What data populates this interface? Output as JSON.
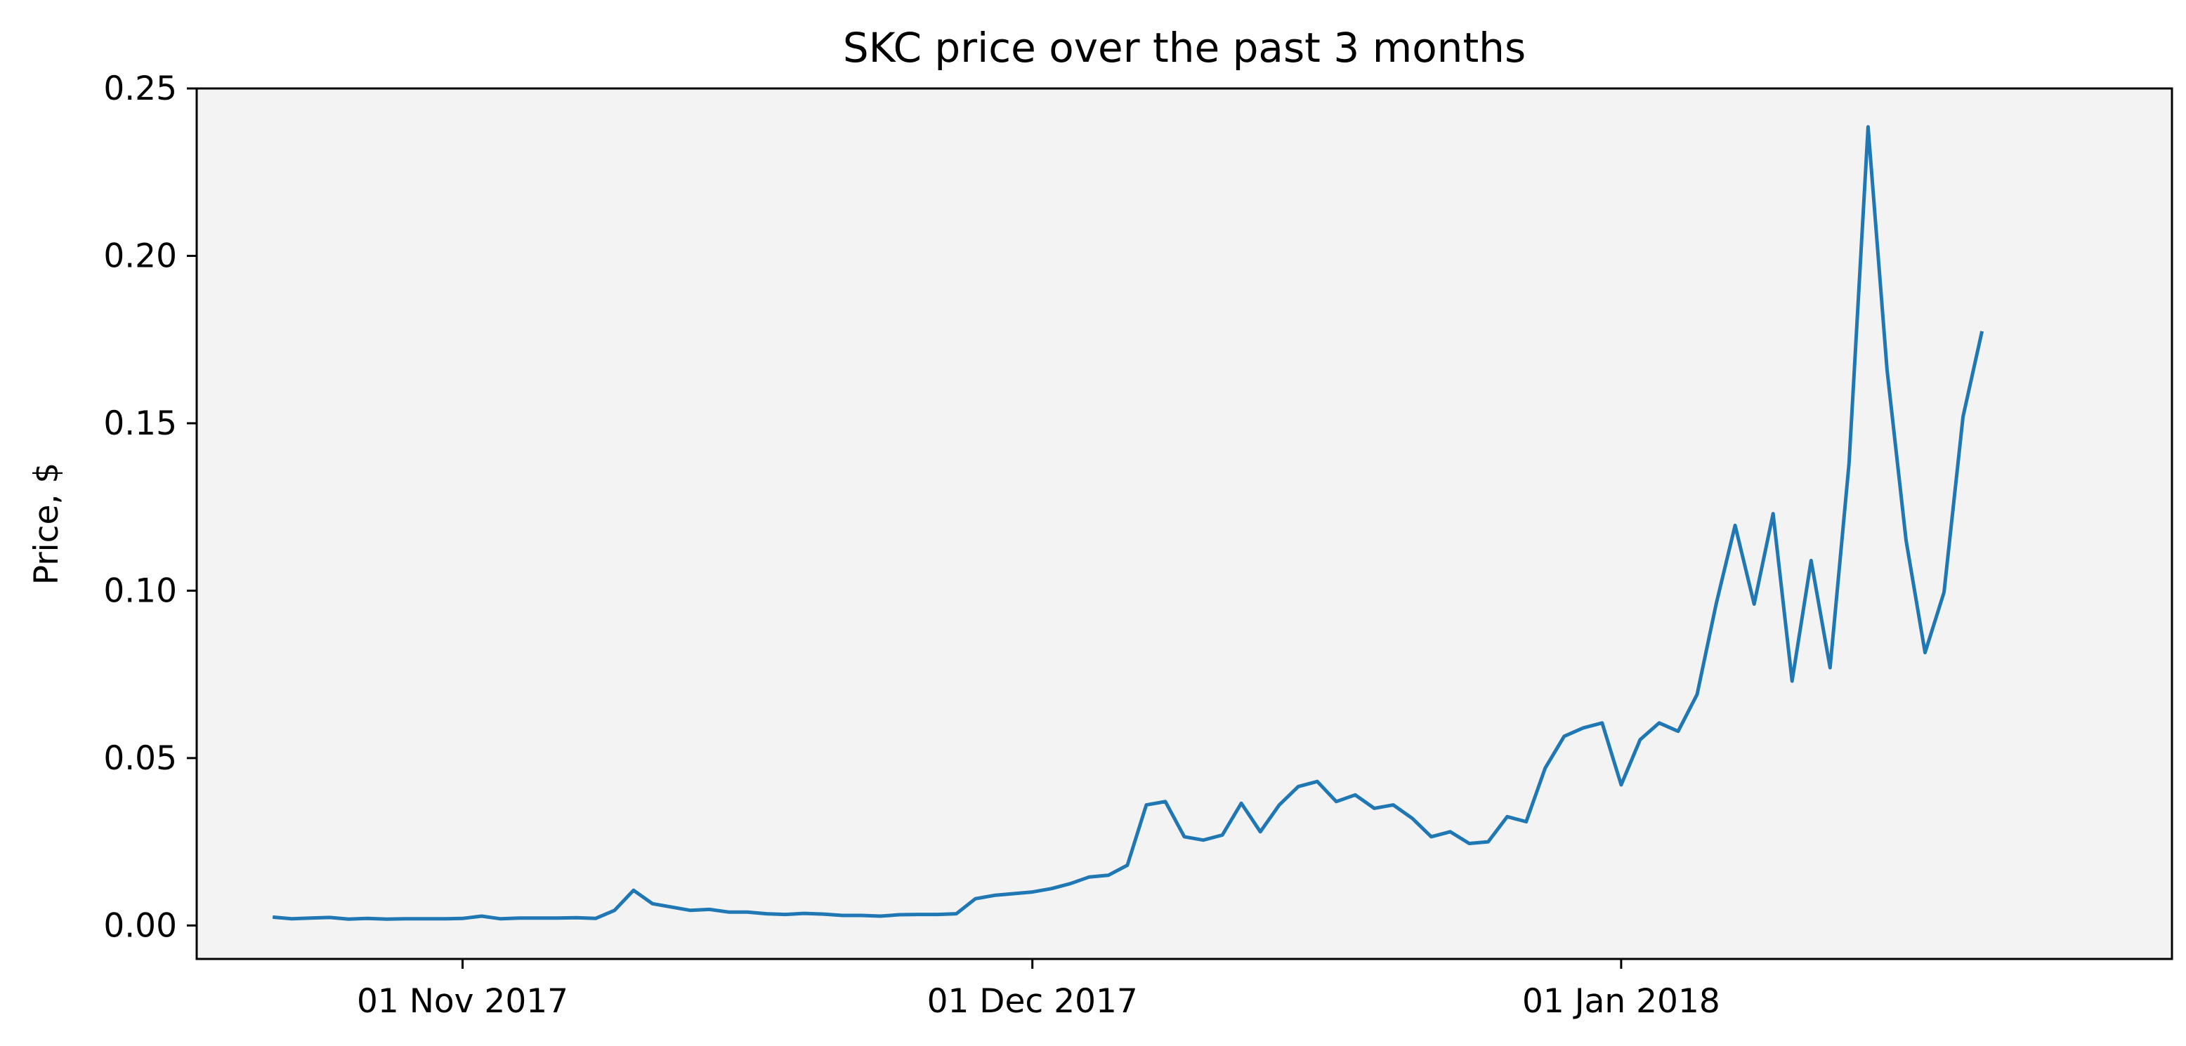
{
  "chart_data": {
    "type": "line",
    "title": "SKC price over the past 3 months",
    "xlabel": "",
    "ylabel": "Price, $",
    "ylim": [
      -0.01,
      0.25
    ],
    "xlim": [
      "2017-10-18",
      "2018-01-30"
    ],
    "grid": false,
    "legend": "none",
    "x_ticks": [
      {
        "date": "2017-11-01",
        "label": "01 Nov 2017"
      },
      {
        "date": "2017-12-01",
        "label": "01 Dec 2017"
      },
      {
        "date": "2018-01-01",
        "label": "01 Jan 2018"
      }
    ],
    "y_ticks": [
      {
        "value": 0.0,
        "label": "0.00"
      },
      {
        "value": 0.05,
        "label": "0.05"
      },
      {
        "value": 0.1,
        "label": "0.10"
      },
      {
        "value": 0.15,
        "label": "0.15"
      },
      {
        "value": 0.2,
        "label": "0.20"
      },
      {
        "value": 0.25,
        "label": "0.25"
      }
    ],
    "series": [
      {
        "color": "#1f77b4",
        "points": [
          [
            "2017-10-22",
            0.0025
          ],
          [
            "2017-10-23",
            0.002
          ],
          [
            "2017-10-24",
            0.0022
          ],
          [
            "2017-10-25",
            0.0024
          ],
          [
            "2017-10-26",
            0.0019
          ],
          [
            "2017-10-27",
            0.0021
          ],
          [
            "2017-10-28",
            0.0019
          ],
          [
            "2017-10-29",
            0.002
          ],
          [
            "2017-10-30",
            0.002
          ],
          [
            "2017-10-31",
            0.002
          ],
          [
            "2017-11-01",
            0.0021
          ],
          [
            "2017-11-02",
            0.0028
          ],
          [
            "2017-11-03",
            0.002
          ],
          [
            "2017-11-04",
            0.0022
          ],
          [
            "2017-11-05",
            0.0022
          ],
          [
            "2017-11-06",
            0.0022
          ],
          [
            "2017-11-07",
            0.0023
          ],
          [
            "2017-11-08",
            0.0021
          ],
          [
            "2017-11-09",
            0.0045
          ],
          [
            "2017-11-10",
            0.0105
          ],
          [
            "2017-11-11",
            0.0065
          ],
          [
            "2017-11-12",
            0.0055
          ],
          [
            "2017-11-13",
            0.0045
          ],
          [
            "2017-11-14",
            0.0048
          ],
          [
            "2017-11-15",
            0.004
          ],
          [
            "2017-11-16",
            0.004
          ],
          [
            "2017-11-17",
            0.0035
          ],
          [
            "2017-11-18",
            0.0033
          ],
          [
            "2017-11-19",
            0.0036
          ],
          [
            "2017-11-20",
            0.0034
          ],
          [
            "2017-11-21",
            0.003
          ],
          [
            "2017-11-22",
            0.003
          ],
          [
            "2017-11-23",
            0.0028
          ],
          [
            "2017-11-24",
            0.0032
          ],
          [
            "2017-11-25",
            0.0033
          ],
          [
            "2017-11-26",
            0.0033
          ],
          [
            "2017-11-27",
            0.0035
          ],
          [
            "2017-11-28",
            0.008
          ],
          [
            "2017-11-29",
            0.009
          ],
          [
            "2017-11-30",
            0.0095
          ],
          [
            "2017-12-01",
            0.01
          ],
          [
            "2017-12-02",
            0.011
          ],
          [
            "2017-12-03",
            0.0125
          ],
          [
            "2017-12-04",
            0.0145
          ],
          [
            "2017-12-05",
            0.015
          ],
          [
            "2017-12-06",
            0.018
          ],
          [
            "2017-12-07",
            0.036
          ],
          [
            "2017-12-08",
            0.037
          ],
          [
            "2017-12-09",
            0.0265
          ],
          [
            "2017-12-10",
            0.0255
          ],
          [
            "2017-12-11",
            0.027
          ],
          [
            "2017-12-12",
            0.0365
          ],
          [
            "2017-12-13",
            0.028
          ],
          [
            "2017-12-14",
            0.036
          ],
          [
            "2017-12-15",
            0.0415
          ],
          [
            "2017-12-16",
            0.043
          ],
          [
            "2017-12-17",
            0.037
          ],
          [
            "2017-12-18",
            0.039
          ],
          [
            "2017-12-19",
            0.035
          ],
          [
            "2017-12-20",
            0.036
          ],
          [
            "2017-12-21",
            0.032
          ],
          [
            "2017-12-22",
            0.0265
          ],
          [
            "2017-12-23",
            0.028
          ],
          [
            "2017-12-24",
            0.0245
          ],
          [
            "2017-12-25",
            0.025
          ],
          [
            "2017-12-26",
            0.0325
          ],
          [
            "2017-12-27",
            0.031
          ],
          [
            "2017-12-28",
            0.047
          ],
          [
            "2017-12-29",
            0.0565
          ],
          [
            "2017-12-30",
            0.059
          ],
          [
            "2017-12-31",
            0.0605
          ],
          [
            "2018-01-01",
            0.042
          ],
          [
            "2018-01-02",
            0.0555
          ],
          [
            "2018-01-03",
            0.0605
          ],
          [
            "2018-01-04",
            0.058
          ],
          [
            "2018-01-05",
            0.069
          ],
          [
            "2018-01-06",
            0.096
          ],
          [
            "2018-01-07",
            0.1195
          ],
          [
            "2018-01-08",
            0.096
          ],
          [
            "2018-01-09",
            0.123
          ],
          [
            "2018-01-10",
            0.073
          ],
          [
            "2018-01-11",
            0.109
          ],
          [
            "2018-01-12",
            0.077
          ],
          [
            "2018-01-13",
            0.138
          ],
          [
            "2018-01-14",
            0.2385
          ],
          [
            "2018-01-15",
            0.166
          ],
          [
            "2018-01-16",
            0.115
          ],
          [
            "2018-01-17",
            0.0815
          ],
          [
            "2018-01-18",
            0.0995
          ],
          [
            "2018-01-19",
            0.152
          ],
          [
            "2018-01-20",
            0.1775
          ]
        ]
      }
    ]
  }
}
